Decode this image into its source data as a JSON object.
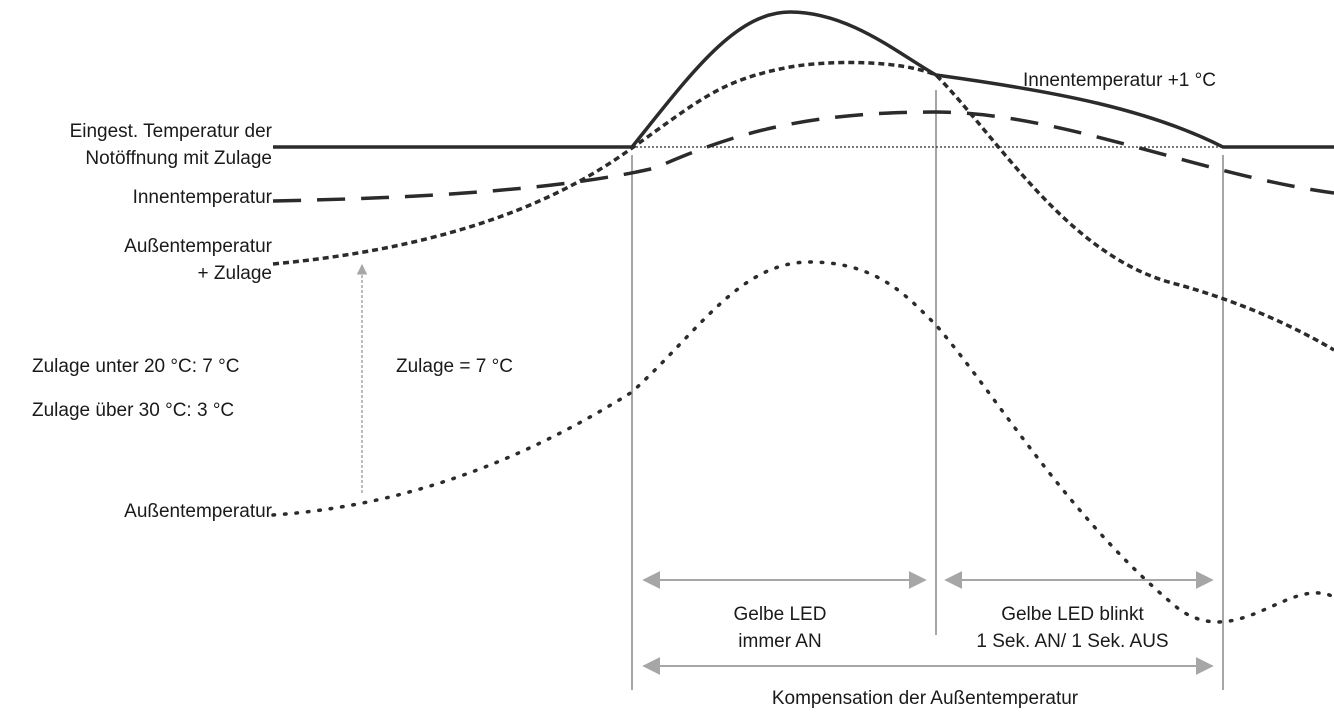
{
  "labels": {
    "setpoint_line1": "Eingest. Temperatur der",
    "setpoint_line2": "Notöffnung mit Zulage",
    "inside_temp": "Innentemperatur",
    "outside_plus_line1": "Außentemperatur",
    "outside_plus_line2": "+ Zulage",
    "allowance_below": "Zulage unter 20 °C: 7 °C",
    "allowance_above": "Zulage über 30 °C: 3 °C",
    "allowance_equals": "Zulage = 7 °C",
    "outside_temp": "Außentemperatur",
    "inside_plus_one": "Innentemperatur +1 °C",
    "led_on_line1": "Gelbe LED",
    "led_on_line2": "immer AN",
    "led_blink_line1": "Gelbe LED blinkt",
    "led_blink_line2": "1 Sek. AN/ 1 Sek. AUS",
    "compensation": "Kompensation der Außentemperatur"
  },
  "colors": {
    "curve": "#2b2b2b",
    "guide": "#a6a6a6",
    "arrow": "#a6a6a6"
  }
}
